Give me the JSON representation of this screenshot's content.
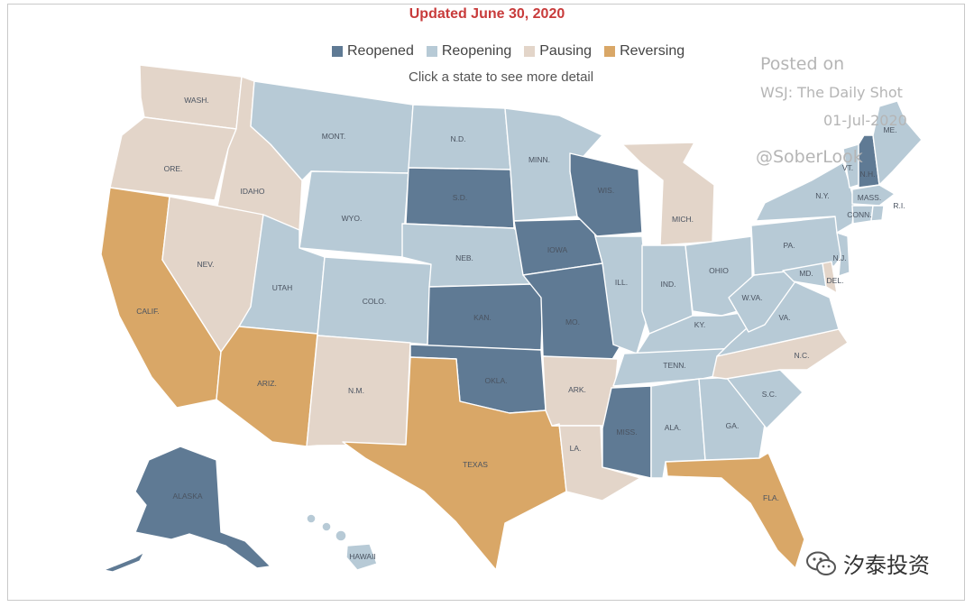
{
  "updated": "Updated June 30, 2020",
  "hint": "Click a state to see more detail",
  "legend": [
    {
      "label": "Reopened",
      "color": "#5f7a94"
    },
    {
      "label": "Reopening",
      "color": "#b7cad6"
    },
    {
      "label": "Pausing",
      "color": "#e3d5c9"
    },
    {
      "label": "Reversing",
      "color": "#d9a767"
    }
  ],
  "watermark": {
    "line1": "Posted on",
    "line2": "WSJ: The Daily Shot",
    "line3": "01-Jul-2020",
    "line4": "@SoberLook"
  },
  "wechat": {
    "text": "汐泰投资",
    "icon": "wechat-icon"
  },
  "states": {
    "wa": {
      "label": "WASH.",
      "status": "Pausing"
    },
    "or": {
      "label": "ORE.",
      "status": "Pausing"
    },
    "ca": {
      "label": "CALIF.",
      "status": "Reversing"
    },
    "id": {
      "label": "IDAHO",
      "status": "Pausing"
    },
    "nv": {
      "label": "NEV.",
      "status": "Pausing"
    },
    "mt": {
      "label": "MONT.",
      "status": "Reopening"
    },
    "wy": {
      "label": "WYO.",
      "status": "Reopening"
    },
    "ut": {
      "label": "UTAH",
      "status": "Reopening"
    },
    "az": {
      "label": "ARIZ.",
      "status": "Reversing"
    },
    "co": {
      "label": "COLO.",
      "status": "Reopening"
    },
    "nm": {
      "label": "N.M.",
      "status": "Pausing"
    },
    "nd": {
      "label": "N.D.",
      "status": "Reopening"
    },
    "sd": {
      "label": "S.D.",
      "status": "Reopened"
    },
    "ne": {
      "label": "NEB.",
      "status": "Reopening"
    },
    "ks": {
      "label": "KAN.",
      "status": "Reopened"
    },
    "ok": {
      "label": "OKLA.",
      "status": "Reopened"
    },
    "tx": {
      "label": "TEXAS",
      "status": "Reversing"
    },
    "mn": {
      "label": "MINN.",
      "status": "Reopening"
    },
    "ia": {
      "label": "IOWA",
      "status": "Reopened"
    },
    "mo": {
      "label": "MO.",
      "status": "Reopened"
    },
    "ar": {
      "label": "ARK.",
      "status": "Pausing"
    },
    "la": {
      "label": "LA.",
      "status": "Pausing"
    },
    "wi": {
      "label": "WIS.",
      "status": "Reopened"
    },
    "il": {
      "label": "ILL.",
      "status": "Reopening"
    },
    "ms": {
      "label": "MISS.",
      "status": "Reopened"
    },
    "mi": {
      "label": "MICH.",
      "status": "Pausing"
    },
    "in": {
      "label": "IND.",
      "status": "Reopening"
    },
    "oh": {
      "label": "OHIO",
      "status": "Reopening"
    },
    "ky": {
      "label": "KY.",
      "status": "Reopening"
    },
    "tn": {
      "label": "TENN.",
      "status": "Reopening"
    },
    "al": {
      "label": "ALA.",
      "status": "Reopening"
    },
    "ga": {
      "label": "GA.",
      "status": "Reopening"
    },
    "fl": {
      "label": "FLA.",
      "status": "Reversing"
    },
    "sc": {
      "label": "S.C.",
      "status": "Reopening"
    },
    "nc": {
      "label": "N.C.",
      "status": "Pausing"
    },
    "va": {
      "label": "VA.",
      "status": "Reopening"
    },
    "wv": {
      "label": "W.VA.",
      "status": "Reopening"
    },
    "pa": {
      "label": "PA.",
      "status": "Reopening"
    },
    "ny": {
      "label": "N.Y.",
      "status": "Reopening"
    },
    "vt": {
      "label": "VT.",
      "status": "Reopening"
    },
    "nh": {
      "label": "N.H.",
      "status": "Reopened"
    },
    "me": {
      "label": "ME.",
      "status": "Reopening"
    },
    "ma": {
      "label": "MASS.",
      "status": "Reopening"
    },
    "ri": {
      "label": "R.I.",
      "status": "Reopening"
    },
    "ct": {
      "label": "CONN.",
      "status": "Reopening"
    },
    "nj": {
      "label": "N.J.",
      "status": "Reopening"
    },
    "de": {
      "label": "DEL.",
      "status": "Pausing"
    },
    "md": {
      "label": "MD.",
      "status": "Reopening"
    },
    "ak": {
      "label": "ALASKA",
      "status": "Reopened"
    },
    "hi": {
      "label": "HAWAII",
      "status": "Reopening"
    }
  }
}
